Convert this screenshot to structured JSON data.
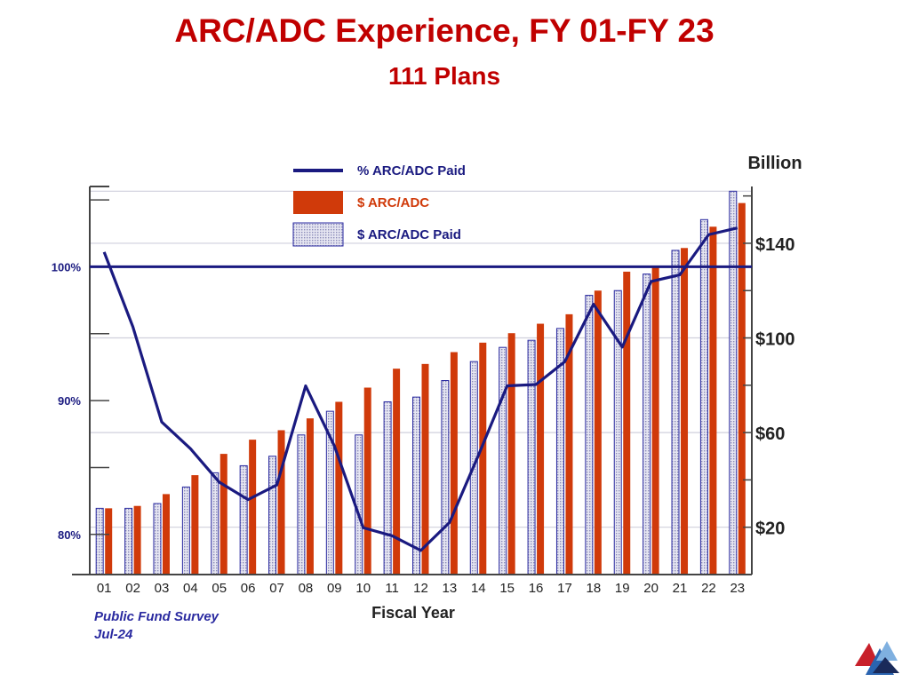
{
  "chart_data": {
    "type": "bar",
    "title": "ARC/ADC Experience, FY 01-FY 23",
    "subtitle": "111 Plans",
    "xlabel": "Fiscal Year",
    "y2_unit_label": "Billion",
    "categories": [
      "01",
      "02",
      "03",
      "04",
      "05",
      "06",
      "07",
      "08",
      "09",
      "10",
      "11",
      "12",
      "13",
      "14",
      "15",
      "16",
      "17",
      "18",
      "19",
      "20",
      "21",
      "22",
      "23"
    ],
    "series": [
      {
        "name": "$ ARC/ADC Paid",
        "kind": "bar",
        "axis": "right",
        "pattern": "dotted",
        "color": "#2a2aa0",
        "values": [
          28,
          28,
          30,
          37,
          43,
          46,
          50,
          59,
          69,
          59,
          73,
          75,
          82,
          90,
          96,
          99,
          104,
          118,
          120,
          127,
          137,
          150,
          162
        ]
      },
      {
        "name": "$ ARC/ADC",
        "kind": "bar",
        "axis": "right",
        "color": "#d03a0a",
        "values": [
          28,
          29,
          34,
          42,
          51,
          57,
          61,
          66,
          73,
          79,
          87,
          89,
          94,
          98,
          102,
          106,
          110,
          120,
          128,
          130,
          138,
          147,
          157
        ]
      },
      {
        "name": "% ARC/ADC Paid",
        "kind": "line",
        "axis": "left",
        "color": "#1a1a80",
        "values": [
          101.1,
          95.5,
          88.4,
          86.4,
          83.9,
          82.6,
          83.7,
          91.1,
          86.6,
          80.5,
          79.9,
          78.8,
          80.9,
          85.9,
          91.1,
          91.2,
          92.9,
          97.2,
          94.0,
          98.9,
          99.4,
          102.4,
          102.9
        ]
      }
    ],
    "y_left": {
      "ticks": [
        "80%",
        "90%",
        "100%"
      ],
      "tick_values": [
        80,
        90,
        100
      ],
      "range": [
        77,
        106
      ]
    },
    "y_right": {
      "ticks": [
        "$20",
        "$60",
        "$100",
        "$140"
      ],
      "tick_values": [
        20,
        60,
        100,
        140
      ],
      "range": [
        0,
        164
      ]
    },
    "reference_line": {
      "axis": "left",
      "value": 100
    },
    "legend_position": "top-center"
  },
  "source": {
    "line1": "Public Fund Survey",
    "line2": "Jul-24"
  }
}
